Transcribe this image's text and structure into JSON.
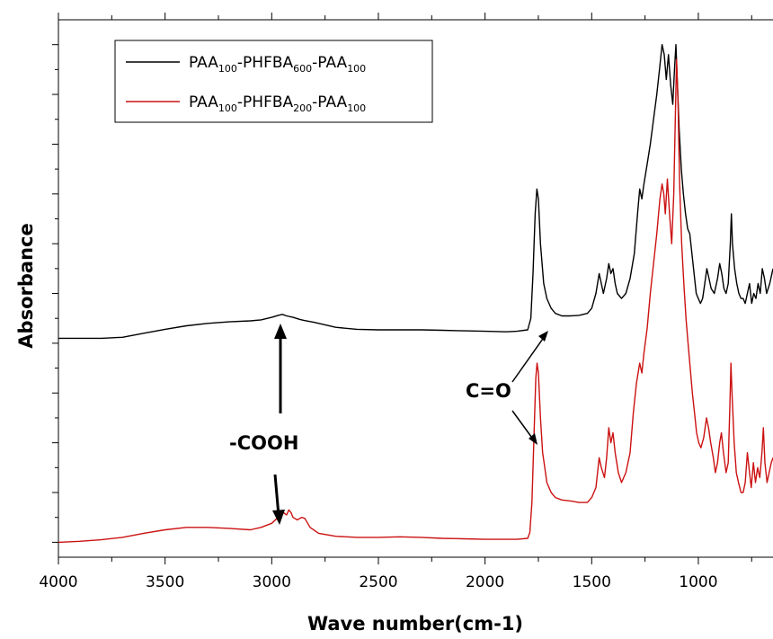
{
  "chart_data": {
    "type": "line",
    "xlabel": "Wave number(cm-1)",
    "ylabel": "Absorbance",
    "xlim": [
      4000,
      650
    ],
    "x_reversed": true,
    "y_tick_labels_shown": false,
    "ylim": [
      -0.03,
      1.05
    ],
    "xticks": [
      {
        "value": 4000,
        "label": "4000"
      },
      {
        "value": 3500,
        "label": "3500"
      },
      {
        "value": 3000,
        "label": "3000"
      },
      {
        "value": 2500,
        "label": "2500"
      },
      {
        "value": 2000,
        "label": "2000"
      },
      {
        "value": 1500,
        "label": "1500"
      },
      {
        "value": 1000,
        "label": "1000"
      }
    ],
    "legend": {
      "placement": "top-left",
      "entries": [
        {
          "base": "PAA",
          "s1": "100",
          "mid": "-PHFBA",
          "s2": "600",
          "mid2": "-PAA",
          "s3": "100",
          "color": "#000000"
        },
        {
          "base": "PAA",
          "s1": "100",
          "mid": "-PHFBA",
          "s2": "200",
          "mid2": "-PAA",
          "s3": "100",
          "color": "#cc1111"
        }
      ]
    },
    "annotations": [
      {
        "text": "-COOH",
        "anchor_wavenumber": 2950
      },
      {
        "text": "C=O",
        "anchor_wavenumber": 1730
      }
    ],
    "series": [
      {
        "color": "#000000",
        "points": [
          [
            4000,
            0.41
          ],
          [
            3800,
            0.41
          ],
          [
            3700,
            0.412
          ],
          [
            3600,
            0.42
          ],
          [
            3500,
            0.428
          ],
          [
            3400,
            0.435
          ],
          [
            3300,
            0.44
          ],
          [
            3200,
            0.443
          ],
          [
            3100,
            0.445
          ],
          [
            3050,
            0.447
          ],
          [
            3000,
            0.452
          ],
          [
            2970,
            0.456
          ],
          [
            2950,
            0.458
          ],
          [
            2930,
            0.455
          ],
          [
            2900,
            0.452
          ],
          [
            2870,
            0.448
          ],
          [
            2850,
            0.446
          ],
          [
            2800,
            0.442
          ],
          [
            2700,
            0.432
          ],
          [
            2600,
            0.428
          ],
          [
            2500,
            0.427
          ],
          [
            2400,
            0.427
          ],
          [
            2300,
            0.427
          ],
          [
            2200,
            0.426
          ],
          [
            2100,
            0.425
          ],
          [
            2000,
            0.424
          ],
          [
            1900,
            0.423
          ],
          [
            1850,
            0.424
          ],
          [
            1800,
            0.427
          ],
          [
            1785,
            0.45
          ],
          [
            1775,
            0.54
          ],
          [
            1765,
            0.66
          ],
          [
            1757,
            0.71
          ],
          [
            1750,
            0.69
          ],
          [
            1740,
            0.6
          ],
          [
            1725,
            0.52
          ],
          [
            1710,
            0.49
          ],
          [
            1690,
            0.47
          ],
          [
            1670,
            0.46
          ],
          [
            1640,
            0.455
          ],
          [
            1600,
            0.455
          ],
          [
            1560,
            0.456
          ],
          [
            1520,
            0.46
          ],
          [
            1500,
            0.47
          ],
          [
            1480,
            0.5
          ],
          [
            1465,
            0.54
          ],
          [
            1455,
            0.52
          ],
          [
            1445,
            0.5
          ],
          [
            1430,
            0.53
          ],
          [
            1420,
            0.56
          ],
          [
            1410,
            0.54
          ],
          [
            1400,
            0.55
          ],
          [
            1390,
            0.52
          ],
          [
            1380,
            0.5
          ],
          [
            1360,
            0.49
          ],
          [
            1340,
            0.5
          ],
          [
            1320,
            0.53
          ],
          [
            1300,
            0.58
          ],
          [
            1285,
            0.66
          ],
          [
            1275,
            0.71
          ],
          [
            1265,
            0.69
          ],
          [
            1255,
            0.72
          ],
          [
            1240,
            0.76
          ],
          [
            1225,
            0.8
          ],
          [
            1210,
            0.85
          ],
          [
            1195,
            0.9
          ],
          [
            1182,
            0.95
          ],
          [
            1170,
            1.0
          ],
          [
            1160,
            0.98
          ],
          [
            1150,
            0.93
          ],
          [
            1140,
            0.98
          ],
          [
            1130,
            0.92
          ],
          [
            1120,
            0.88
          ],
          [
            1112,
            0.95
          ],
          [
            1105,
            1.0
          ],
          [
            1098,
            0.92
          ],
          [
            1090,
            0.83
          ],
          [
            1080,
            0.75
          ],
          [
            1070,
            0.7
          ],
          [
            1060,
            0.66
          ],
          [
            1050,
            0.63
          ],
          [
            1040,
            0.62
          ],
          [
            1030,
            0.58
          ],
          [
            1020,
            0.54
          ],
          [
            1010,
            0.5
          ],
          [
            1000,
            0.49
          ],
          [
            990,
            0.48
          ],
          [
            980,
            0.49
          ],
          [
            970,
            0.52
          ],
          [
            960,
            0.55
          ],
          [
            950,
            0.53
          ],
          [
            940,
            0.51
          ],
          [
            925,
            0.5
          ],
          [
            910,
            0.53
          ],
          [
            900,
            0.56
          ],
          [
            890,
            0.54
          ],
          [
            880,
            0.51
          ],
          [
            870,
            0.5
          ],
          [
            860,
            0.52
          ],
          [
            850,
            0.6
          ],
          [
            845,
            0.66
          ],
          [
            840,
            0.6
          ],
          [
            830,
            0.55
          ],
          [
            820,
            0.52
          ],
          [
            810,
            0.5
          ],
          [
            800,
            0.49
          ],
          [
            790,
            0.49
          ],
          [
            780,
            0.48
          ],
          [
            770,
            0.5
          ],
          [
            760,
            0.52
          ],
          [
            750,
            0.48
          ],
          [
            740,
            0.5
          ],
          [
            730,
            0.49
          ],
          [
            720,
            0.52
          ],
          [
            710,
            0.5
          ],
          [
            700,
            0.55
          ],
          [
            690,
            0.53
          ],
          [
            680,
            0.5
          ],
          [
            665,
            0.52
          ],
          [
            650,
            0.55
          ]
        ]
      },
      {
        "color": "#cc1111",
        "points": [
          [
            4000,
            0.0
          ],
          [
            3900,
            0.002
          ],
          [
            3800,
            0.005
          ],
          [
            3700,
            0.01
          ],
          [
            3600,
            0.018
          ],
          [
            3500,
            0.025
          ],
          [
            3400,
            0.03
          ],
          [
            3300,
            0.03
          ],
          [
            3200,
            0.028
          ],
          [
            3100,
            0.025
          ],
          [
            3050,
            0.03
          ],
          [
            3000,
            0.038
          ],
          [
            2970,
            0.05
          ],
          [
            2950,
            0.062
          ],
          [
            2940,
            0.058
          ],
          [
            2930,
            0.055
          ],
          [
            2920,
            0.065
          ],
          [
            2910,
            0.06
          ],
          [
            2900,
            0.05
          ],
          [
            2880,
            0.045
          ],
          [
            2860,
            0.05
          ],
          [
            2845,
            0.048
          ],
          [
            2820,
            0.03
          ],
          [
            2780,
            0.018
          ],
          [
            2700,
            0.012
          ],
          [
            2600,
            0.01
          ],
          [
            2500,
            0.01
          ],
          [
            2400,
            0.011
          ],
          [
            2300,
            0.01
          ],
          [
            2200,
            0.008
          ],
          [
            2100,
            0.007
          ],
          [
            2000,
            0.006
          ],
          [
            1900,
            0.006
          ],
          [
            1850,
            0.006
          ],
          [
            1800,
            0.008
          ],
          [
            1790,
            0.02
          ],
          [
            1780,
            0.08
          ],
          [
            1770,
            0.22
          ],
          [
            1762,
            0.33
          ],
          [
            1756,
            0.36
          ],
          [
            1750,
            0.34
          ],
          [
            1740,
            0.25
          ],
          [
            1730,
            0.18
          ],
          [
            1720,
            0.15
          ],
          [
            1710,
            0.12
          ],
          [
            1690,
            0.1
          ],
          [
            1670,
            0.09
          ],
          [
            1640,
            0.085
          ],
          [
            1600,
            0.083
          ],
          [
            1560,
            0.08
          ],
          [
            1520,
            0.08
          ],
          [
            1500,
            0.09
          ],
          [
            1480,
            0.11
          ],
          [
            1465,
            0.17
          ],
          [
            1455,
            0.15
          ],
          [
            1440,
            0.13
          ],
          [
            1430,
            0.17
          ],
          [
            1420,
            0.23
          ],
          [
            1410,
            0.2
          ],
          [
            1400,
            0.22
          ],
          [
            1390,
            0.18
          ],
          [
            1375,
            0.14
          ],
          [
            1360,
            0.12
          ],
          [
            1340,
            0.14
          ],
          [
            1320,
            0.18
          ],
          [
            1305,
            0.26
          ],
          [
            1290,
            0.32
          ],
          [
            1275,
            0.36
          ],
          [
            1265,
            0.34
          ],
          [
            1255,
            0.38
          ],
          [
            1240,
            0.43
          ],
          [
            1225,
            0.5
          ],
          [
            1210,
            0.56
          ],
          [
            1195,
            0.62
          ],
          [
            1180,
            0.69
          ],
          [
            1170,
            0.72
          ],
          [
            1162,
            0.7
          ],
          [
            1155,
            0.66
          ],
          [
            1145,
            0.73
          ],
          [
            1135,
            0.66
          ],
          [
            1125,
            0.6
          ],
          [
            1115,
            0.7
          ],
          [
            1108,
            0.85
          ],
          [
            1102,
            0.97
          ],
          [
            1095,
            0.88
          ],
          [
            1088,
            0.72
          ],
          [
            1078,
            0.6
          ],
          [
            1068,
            0.52
          ],
          [
            1058,
            0.45
          ],
          [
            1048,
            0.4
          ],
          [
            1038,
            0.35
          ],
          [
            1028,
            0.3
          ],
          [
            1018,
            0.26
          ],
          [
            1008,
            0.22
          ],
          [
            998,
            0.2
          ],
          [
            988,
            0.19
          ],
          [
            975,
            0.21
          ],
          [
            962,
            0.25
          ],
          [
            952,
            0.23
          ],
          [
            942,
            0.2
          ],
          [
            930,
            0.17
          ],
          [
            920,
            0.14
          ],
          [
            910,
            0.16
          ],
          [
            900,
            0.2
          ],
          [
            892,
            0.22
          ],
          [
            882,
            0.18
          ],
          [
            870,
            0.14
          ],
          [
            860,
            0.16
          ],
          [
            852,
            0.28
          ],
          [
            847,
            0.36
          ],
          [
            842,
            0.3
          ],
          [
            832,
            0.2
          ],
          [
            822,
            0.14
          ],
          [
            812,
            0.12
          ],
          [
            800,
            0.1
          ],
          [
            790,
            0.1
          ],
          [
            780,
            0.12
          ],
          [
            770,
            0.18
          ],
          [
            760,
            0.14
          ],
          [
            752,
            0.11
          ],
          [
            742,
            0.16
          ],
          [
            732,
            0.12
          ],
          [
            722,
            0.15
          ],
          [
            712,
            0.13
          ],
          [
            702,
            0.18
          ],
          [
            695,
            0.23
          ],
          [
            688,
            0.16
          ],
          [
            678,
            0.12
          ],
          [
            668,
            0.14
          ],
          [
            658,
            0.16
          ],
          [
            650,
            0.17
          ]
        ]
      }
    ]
  }
}
